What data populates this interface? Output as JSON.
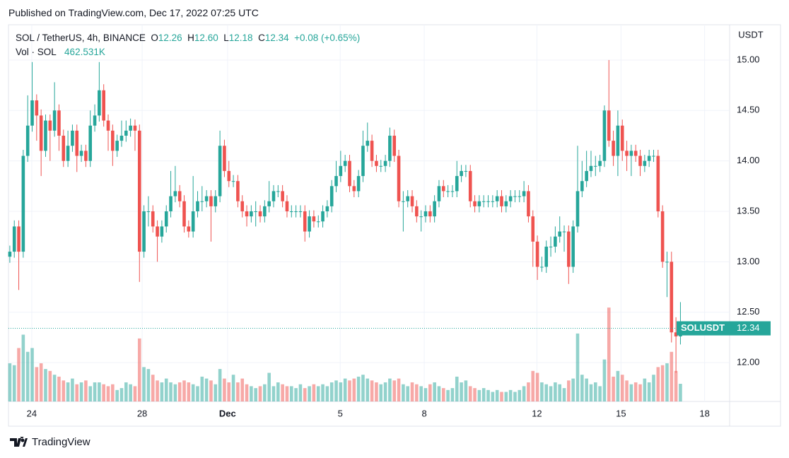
{
  "header": "Published on TradingView.com, Dec 17, 2022 07:25 UTC",
  "footer": "TradingView",
  "chart_data": {
    "type": "candlestick",
    "symbol": "SOL / TetherUS, 4h, BINANCE",
    "ohlc_letters": [
      "O",
      "H",
      "L",
      "C"
    ],
    "ohlc_value_labels": [
      "12.26",
      "12.60",
      "12.18",
      "12.34"
    ],
    "change": "+0.08 (+0.65%)",
    "volume_name": "Vol · SOL",
    "volume_label": "462.531K",
    "price_tag": "SOLUSDT",
    "y_axis_label": "USDT",
    "up_color": "#26a69a",
    "down_color": "#ef5350",
    "grid": true,
    "open": [
      13.05,
      13.1,
      13.35,
      13.1,
      14.05,
      14.35,
      14.6,
      14.45,
      14.1,
      14.4,
      14.3,
      14.5,
      14.25,
      14.0,
      14.15,
      14.3,
      14.05,
      14.1,
      14.0,
      14.35,
      14.45,
      14.7,
      14.4,
      14.3,
      14.1,
      14.2,
      14.25,
      14.3,
      14.35,
      14.3,
      13.1,
      13.5,
      13.5,
      13.35,
      13.25,
      13.35,
      13.5,
      13.65,
      13.7,
      13.6,
      13.35,
      13.3,
      13.5,
      13.6,
      13.6,
      13.65,
      13.55,
      13.65,
      14.15,
      13.9,
      13.8,
      13.8,
      13.6,
      13.5,
      13.45,
      13.5,
      13.5,
      13.45,
      13.55,
      13.6,
      13.7,
      13.7,
      13.6,
      13.5,
      13.5,
      13.5,
      13.5,
      13.3,
      13.45,
      13.4,
      13.4,
      13.5,
      13.55,
      13.75,
      13.85,
      13.95,
      14.0,
      13.75,
      13.7,
      13.85,
      14.15,
      14.2,
      14.0,
      13.95,
      13.95,
      14.0,
      14.25,
      14.05,
      13.6,
      13.6,
      13.65,
      13.55,
      13.45,
      13.45,
      13.5,
      13.45,
      13.6,
      13.75,
      13.7,
      13.7,
      13.7,
      13.85,
      13.9,
      13.9,
      13.6,
      13.55,
      13.6,
      13.6,
      13.6,
      13.6,
      13.65,
      13.55,
      13.6,
      13.65,
      13.65,
      13.65,
      13.7,
      13.45,
      13.2,
      12.95,
      12.95,
      13.15,
      13.15,
      13.25,
      13.3,
      13.3,
      12.95,
      13.35,
      13.7,
      13.8,
      13.9,
      13.95,
      13.95,
      14.0,
      14.5,
      14.2,
      14.05,
      14.35,
      14.1,
      14.05,
      14.1,
      14.05,
      13.95,
      14.0,
      14.05,
      14.05,
      13.5,
      13.0,
      13.0,
      12.3,
      12.26
    ],
    "high": [
      13.16,
      13.41,
      13.41,
      14.11,
      14.65,
      14.98,
      14.66,
      14.51,
      14.46,
      14.46,
      14.78,
      14.56,
      14.31,
      14.3,
      14.36,
      14.36,
      14.16,
      14.16,
      14.5,
      14.56,
      14.98,
      14.76,
      14.46,
      14.36,
      14.26,
      14.4,
      14.4,
      14.42,
      14.41,
      14.36,
      13.56,
      13.65,
      13.56,
      13.41,
      13.41,
      13.56,
      13.9,
      13.95,
      13.76,
      13.66,
      13.41,
      13.85,
      13.7,
      13.75,
      13.71,
      13.71,
      13.71,
      14.3,
      14.21,
      14.0,
      13.86,
      13.86,
      13.66,
      13.56,
      13.56,
      13.6,
      13.56,
      13.61,
      13.8,
      13.76,
      13.76,
      13.76,
      13.66,
      13.56,
      13.56,
      13.56,
      13.56,
      13.51,
      13.51,
      13.46,
      13.56,
      13.61,
      13.81,
      14.0,
      14.1,
      14.06,
      14.06,
      13.81,
      13.91,
      14.3,
      14.38,
      14.26,
      14.06,
      14.01,
      14.06,
      14.33,
      14.31,
      14.11,
      13.7,
      13.71,
      13.71,
      13.61,
      13.51,
      13.56,
      13.56,
      13.66,
      13.81,
      13.81,
      13.76,
      13.76,
      14.0,
      13.96,
      13.96,
      13.96,
      13.66,
      13.66,
      13.66,
      13.66,
      13.66,
      13.71,
      13.71,
      13.66,
      13.71,
      13.71,
      13.71,
      13.8,
      13.76,
      13.51,
      13.26,
      13.05,
      13.21,
      13.25,
      13.35,
      13.45,
      13.36,
      13.36,
      13.41,
      14.15,
      14.0,
      14.1,
      14.1,
      14.05,
      14.06,
      14.55,
      15.0,
      14.3,
      14.5,
      14.41,
      14.2,
      14.16,
      14.16,
      14.11,
      14.06,
      14.11,
      14.11,
      14.11,
      13.56,
      13.1,
      13.1,
      12.45,
      12.6
    ],
    "low": [
      12.99,
      13.04,
      12.72,
      13.04,
      13.99,
      14.29,
      14.2,
      13.85,
      14.04,
      14.0,
      14.24,
      14.1,
      13.94,
      13.94,
      14.09,
      13.89,
      13.99,
      13.94,
      13.94,
      14.29,
      14.39,
      14.34,
      14.1,
      13.95,
      14.04,
      14.14,
      14.19,
      14.24,
      14.1,
      12.8,
      13.04,
      13.35,
      13.29,
      13.0,
      13.19,
      13.29,
      13.44,
      13.59,
      13.54,
      13.29,
      13.24,
      13.24,
      13.44,
      13.5,
      13.54,
      13.2,
      13.49,
      13.59,
      13.84,
      13.74,
      13.74,
      13.54,
      13.44,
      13.35,
      13.39,
      13.35,
      13.39,
      13.39,
      13.49,
      13.54,
      13.64,
      13.54,
      13.44,
      13.44,
      13.44,
      13.44,
      13.2,
      13.24,
      13.34,
      13.34,
      13.34,
      13.44,
      13.49,
      13.69,
      13.79,
      13.89,
      13.69,
      13.64,
      13.64,
      13.79,
      14.09,
      13.94,
      13.89,
      13.89,
      13.89,
      13.94,
      13.99,
      13.54,
      13.3,
      13.54,
      13.49,
      13.39,
      13.3,
      13.39,
      13.39,
      13.39,
      13.54,
      13.64,
      13.64,
      13.64,
      13.64,
      13.79,
      13.84,
      13.54,
      13.49,
      13.49,
      13.54,
      13.54,
      13.54,
      13.54,
      13.49,
      13.49,
      13.54,
      13.59,
      13.59,
      13.59,
      13.39,
      12.95,
      12.82,
      12.9,
      12.89,
      13.05,
      13.09,
      13.19,
      13.1,
      12.78,
      12.89,
      13.29,
      13.64,
      13.74,
      13.84,
      13.85,
      13.89,
      13.94,
      14.14,
      13.95,
      13.85,
      14.0,
      13.9,
      13.85,
      13.99,
      13.85,
      13.89,
      13.94,
      13.99,
      13.44,
      12.94,
      12.65,
      12.2,
      11.9,
      12.18
    ],
    "close": [
      13.1,
      13.35,
      13.1,
      14.05,
      14.35,
      14.6,
      14.45,
      14.1,
      14.4,
      14.3,
      14.5,
      14.25,
      14.0,
      14.15,
      14.3,
      14.05,
      14.1,
      14.0,
      14.35,
      14.45,
      14.7,
      14.4,
      14.3,
      14.1,
      14.2,
      14.25,
      14.3,
      14.35,
      14.3,
      13.1,
      13.5,
      13.5,
      13.35,
      13.25,
      13.35,
      13.5,
      13.65,
      13.7,
      13.6,
      13.35,
      13.3,
      13.5,
      13.6,
      13.6,
      13.65,
      13.55,
      13.65,
      14.15,
      13.9,
      13.8,
      13.8,
      13.6,
      13.5,
      13.45,
      13.5,
      13.5,
      13.45,
      13.55,
      13.6,
      13.7,
      13.7,
      13.6,
      13.5,
      13.5,
      13.5,
      13.5,
      13.3,
      13.45,
      13.4,
      13.4,
      13.5,
      13.55,
      13.75,
      13.85,
      13.95,
      14.0,
      13.75,
      13.7,
      13.85,
      14.15,
      14.2,
      14.0,
      13.95,
      13.95,
      14.0,
      14.25,
      14.05,
      13.6,
      13.6,
      13.65,
      13.55,
      13.45,
      13.45,
      13.5,
      13.45,
      13.6,
      13.75,
      13.7,
      13.7,
      13.7,
      13.85,
      13.9,
      13.9,
      13.6,
      13.55,
      13.6,
      13.6,
      13.6,
      13.6,
      13.65,
      13.55,
      13.6,
      13.65,
      13.65,
      13.65,
      13.7,
      13.45,
      13.2,
      12.95,
      12.95,
      13.15,
      13.15,
      13.25,
      13.3,
      13.3,
      12.95,
      13.35,
      13.7,
      13.8,
      13.9,
      13.95,
      13.95,
      14.0,
      14.5,
      14.2,
      14.05,
      14.35,
      14.1,
      14.05,
      14.1,
      14.05,
      13.95,
      14.0,
      14.05,
      14.05,
      13.5,
      13.0,
      13.0,
      12.3,
      12.26,
      12.34
    ],
    "volume": [
      1000,
      950,
      1400,
      1750,
      1300,
      1400,
      900,
      1000,
      850,
      800,
      700,
      650,
      550,
      500,
      600,
      450,
      500,
      550,
      400,
      500,
      500,
      450,
      400,
      450,
      300,
      350,
      500,
      450,
      400,
      1650,
      900,
      850,
      700,
      550,
      500,
      600,
      500,
      450,
      500,
      550,
      500,
      450,
      400,
      650,
      600,
      550,
      450,
      850,
      600,
      500,
      700,
      500,
      600,
      450,
      400,
      350,
      400,
      450,
      750,
      400,
      500,
      450,
      400,
      400,
      350,
      450,
      350,
      400,
      450,
      400,
      450,
      400,
      500,
      550,
      500,
      600,
      550,
      600,
      650,
      700,
      600,
      550,
      500,
      450,
      500,
      600,
      550,
      600,
      450,
      400,
      500,
      450,
      400,
      350,
      450,
      500,
      400,
      350,
      300,
      350,
      650,
      500,
      550,
      400,
      350,
      300,
      350,
      300,
      250,
      300,
      250,
      250,
      300,
      250,
      300,
      400,
      500,
      800,
      750,
      500,
      450,
      400,
      500,
      450,
      350,
      550,
      600,
      1780,
      700,
      600,
      450,
      500,
      400,
      1100,
      2460,
      650,
      800,
      700,
      550,
      450,
      500,
      450,
      600,
      500,
      700,
      900,
      950,
      1000,
      1300,
      800,
      462.531
    ],
    "xlim": [
      -0.3,
      161
    ],
    "xticks": [
      {
        "value": 4.9,
        "label": "24"
      },
      {
        "value": 29.6,
        "label": "28"
      },
      {
        "value": 48.7,
        "label": "Dec"
      },
      {
        "value": 73.9,
        "label": "5"
      },
      {
        "value": 92.7,
        "label": "8"
      },
      {
        "value": 117.9,
        "label": "12"
      },
      {
        "value": 136.7,
        "label": "15"
      },
      {
        "value": 155.4,
        "label": "18"
      }
    ],
    "ylim": [
      11.615,
      15.35
    ],
    "yticks": [
      {
        "value": 12,
        "label": "12.00"
      },
      {
        "value": 12.5,
        "label": "12.50"
      },
      {
        "value": 13,
        "label": "13.00"
      },
      {
        "value": 13.5,
        "label": "13.50"
      },
      {
        "value": 14,
        "label": "14.00"
      },
      {
        "value": 14.5,
        "label": "14.50"
      },
      {
        "value": 15,
        "label": "15.00"
      }
    ]
  }
}
